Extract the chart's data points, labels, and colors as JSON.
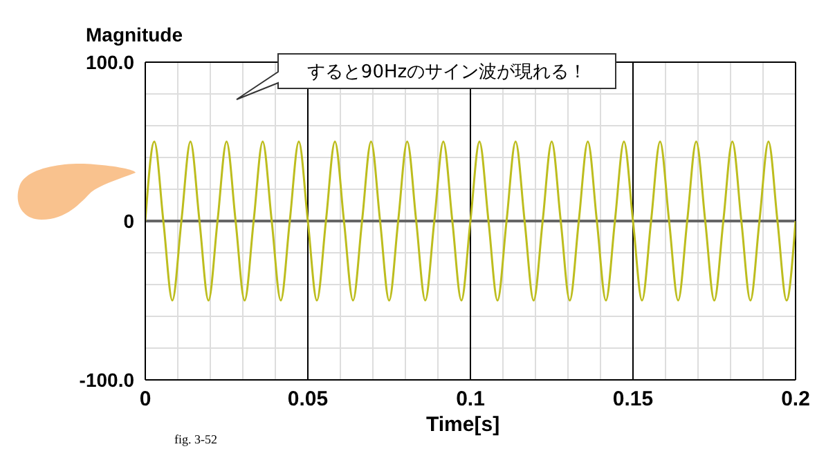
{
  "chart_data": {
    "type": "line",
    "ylabel": "Magnitude",
    "xlabel": "Time[s]",
    "annotations": [
      "すると90Hzのサイン波が現れる！",
      "fig. 3-52"
    ],
    "xlim": [
      0,
      0.2
    ],
    "ylim": [
      -100,
      100
    ],
    "xticks": [
      0,
      {
        "value": 0.01,
        "label": null
      },
      {
        "value": 0.02,
        "label": null
      },
      {
        "value": 0.03,
        "label": null
      },
      {
        "value": 0.04,
        "label": null
      },
      0.05,
      {
        "value": 0.06,
        "label": null
      },
      {
        "value": 0.07,
        "label": null
      },
      {
        "value": 0.08,
        "label": null
      },
      {
        "value": 0.09,
        "label": null
      },
      0.1,
      {
        "value": 0.11,
        "label": null
      },
      {
        "value": 0.12,
        "label": null
      },
      {
        "value": 0.13,
        "label": null
      },
      {
        "value": 0.14,
        "label": null
      },
      0.15,
      {
        "value": 0.16,
        "label": null
      },
      {
        "value": 0.17,
        "label": null
      },
      {
        "value": 0.18,
        "label": null
      },
      {
        "value": 0.19,
        "label": null
      },
      0.2
    ],
    "yticks": [
      {
        "value": -100,
        "label": "-100.0"
      },
      {
        "value": -80,
        "label": null
      },
      {
        "value": -60,
        "label": null
      },
      {
        "value": -40,
        "label": null
      },
      {
        "value": -20,
        "label": null
      },
      0,
      {
        "value": 20,
        "label": null
      },
      {
        "value": 40,
        "label": null
      },
      {
        "value": 60,
        "label": null
      },
      {
        "value": 80,
        "label": null
      },
      {
        "value": 100,
        "label": "100.0"
      }
    ],
    "grid": true,
    "marker": "none",
    "line_style": "solid",
    "x": [
      0,
      0.00278,
      0.00556,
      0.00833,
      0.01111,
      0.01389,
      0.01667,
      0.01944,
      0.02222,
      0.025,
      0.02778,
      0.03056,
      0.03333,
      0.03611,
      0.03889,
      0.04167,
      0.04444,
      0.04722,
      0.05,
      0.05278,
      0.05556,
      0.05833,
      0.06111,
      0.06389,
      0.06667,
      0.06944,
      0.07222,
      0.075,
      0.07778,
      0.08056,
      0.08333,
      0.08611,
      0.08889,
      0.09167,
      0.09444,
      0.09722,
      0.1,
      0.10278,
      0.10556,
      0.10833,
      0.11111,
      0.11389,
      0.11667,
      0.11944,
      0.12222,
      0.125,
      0.12778,
      0.13056,
      0.13333,
      0.13611,
      0.13889,
      0.14167,
      0.14444,
      0.14722,
      0.15,
      0.15278,
      0.15556,
      0.15833,
      0.16111,
      0.16389,
      0.16667,
      0.16944,
      0.17222,
      0.175,
      0.17778,
      0.18056,
      0.18333,
      0.18611,
      0.18889,
      0.19167,
      0.19444,
      0.19722,
      0.2
    ],
    "series": [
      {
        "color": "#bdbd1e",
        "values": [
          0,
          50,
          0,
          -50,
          0,
          50,
          0,
          -50,
          0,
          50,
          0,
          -50,
          0,
          50,
          0,
          -50,
          0,
          50,
          0,
          -50,
          0,
          50,
          0,
          -50,
          0,
          50,
          0,
          -50,
          0,
          50,
          0,
          -50,
          0,
          50,
          0,
          -50,
          0,
          50,
          0,
          -50,
          0,
          50,
          0,
          -50,
          0,
          50,
          0,
          -50,
          0,
          50,
          0,
          -50,
          0,
          50,
          0,
          -50,
          0,
          50,
          0,
          -50,
          0,
          50,
          0,
          -50,
          0,
          50,
          0,
          -50,
          0,
          50,
          0,
          -50,
          0
        ]
      }
    ]
  }
}
